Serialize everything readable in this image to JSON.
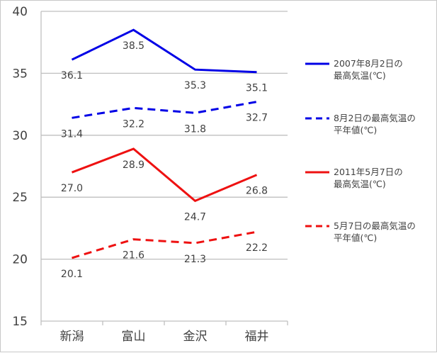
{
  "chart_data": {
    "type": "line",
    "categories": [
      "新潟",
      "富山",
      "金沢",
      "福井"
    ],
    "ylim": [
      15,
      40
    ],
    "yticks": [
      15,
      20,
      25,
      30,
      35,
      40
    ],
    "grid": true,
    "legend_position": "right",
    "series": [
      {
        "name": "2007年8月2日の最高気温(℃)",
        "legend_lines": [
          "2007年8月2日の",
          "最高気温(℃)"
        ],
        "values": [
          36.1,
          38.5,
          35.3,
          35.1
        ],
        "labels": [
          "36.1",
          "38.5",
          "35.3",
          "35.1"
        ],
        "color": "#0000e6",
        "dashed": false
      },
      {
        "name": "8月2日の最高気温の平年値(℃)",
        "legend_lines": [
          "8月2日の最高気温の",
          "平年値(℃)"
        ],
        "values": [
          31.4,
          32.2,
          31.8,
          32.7
        ],
        "labels": [
          "31.4",
          "32.2",
          "31.8",
          "32.7"
        ],
        "color": "#0000e6",
        "dashed": true
      },
      {
        "name": "2011年5月7日の最高気温(℃)",
        "legend_lines": [
          "2011年5月7日の",
          "最高気温(℃)"
        ],
        "values": [
          27.0,
          28.9,
          24.7,
          26.8
        ],
        "labels": [
          "27.0",
          "28.9",
          "24.7",
          "26.8"
        ],
        "color": "#ee1111",
        "dashed": false
      },
      {
        "name": "5月7日の最高気温の平年値(℃)",
        "legend_lines": [
          "5月7日の最高気温の",
          "平年値(℃)"
        ],
        "values": [
          20.1,
          21.6,
          21.3,
          22.2
        ],
        "labels": [
          "20.1",
          "21.6",
          "21.3",
          "22.2"
        ],
        "color": "#ee1111",
        "dashed": true
      }
    ]
  }
}
